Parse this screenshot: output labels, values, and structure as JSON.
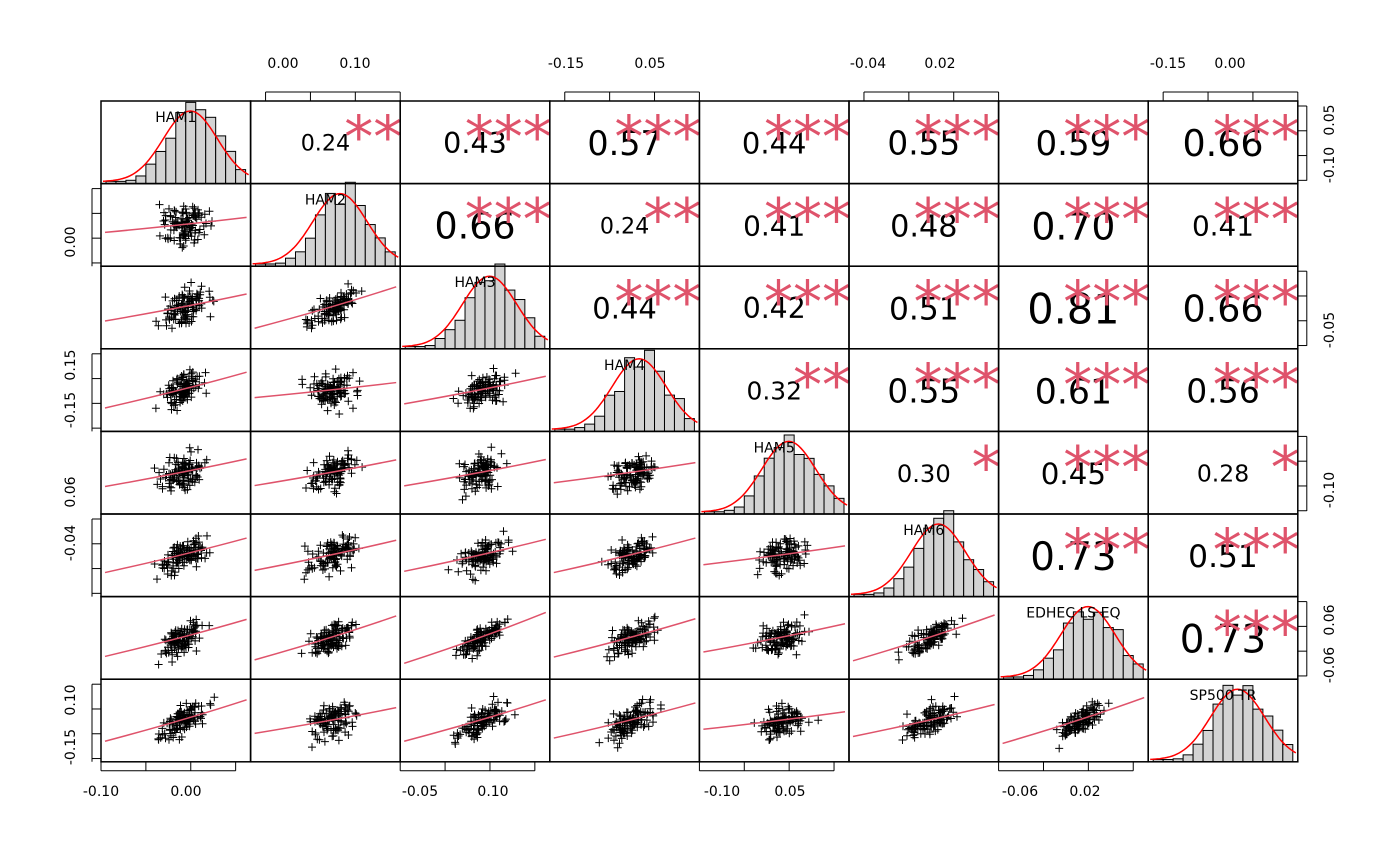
{
  "chart_data": {
    "type": "scatter",
    "title": "",
    "variables": [
      "HAM1",
      "HAM2",
      "HAM3",
      "HAM4",
      "HAM5",
      "HAM6",
      "EDHEC LS EQ",
      "SP500 TR"
    ],
    "correlations": [
      [
        null,
        0.24,
        0.43,
        0.57,
        0.44,
        0.55,
        0.59,
        0.66
      ],
      [
        null,
        null,
        0.66,
        0.24,
        0.41,
        0.48,
        0.7,
        0.41
      ],
      [
        null,
        null,
        null,
        0.44,
        0.42,
        0.51,
        0.81,
        0.66
      ],
      [
        null,
        null,
        null,
        null,
        0.32,
        0.55,
        0.61,
        0.56
      ],
      [
        null,
        null,
        null,
        null,
        null,
        0.3,
        0.45,
        0.28
      ],
      [
        null,
        null,
        null,
        null,
        null,
        null,
        0.73,
        0.51
      ],
      [
        null,
        null,
        null,
        null,
        null,
        null,
        null,
        0.73
      ]
    ],
    "correlation_labels": [
      [
        null,
        "0.24",
        "0.43",
        "0.57",
        "0.44",
        "0.55",
        "0.59",
        "0.66"
      ],
      [
        null,
        null,
        "0.66",
        "0.24",
        "0.41",
        "0.48",
        "0.70",
        "0.41"
      ],
      [
        null,
        null,
        null,
        "0.44",
        "0.42",
        "0.51",
        "0.81",
        "0.66"
      ],
      [
        null,
        null,
        null,
        null,
        "0.32",
        "0.55",
        "0.61",
        "0.56"
      ],
      [
        null,
        null,
        null,
        null,
        null,
        "0.30",
        "0.45",
        "0.28"
      ],
      [
        null,
        null,
        null,
        null,
        null,
        null,
        "0.73",
        "0.51"
      ],
      [
        null,
        null,
        null,
        null,
        null,
        null,
        null,
        "0.73"
      ]
    ],
    "significance": [
      [
        null,
        "**",
        "***",
        "***",
        "***",
        "***",
        "***",
        "***"
      ],
      [
        null,
        null,
        "***",
        "**",
        "***",
        "***",
        "***",
        "***"
      ],
      [
        null,
        null,
        null,
        "***",
        "***",
        "***",
        "***",
        "***"
      ],
      [
        null,
        null,
        null,
        null,
        "**",
        "***",
        "***",
        "***"
      ],
      [
        null,
        null,
        null,
        null,
        null,
        "*",
        "***",
        "*"
      ],
      [
        null,
        null,
        null,
        null,
        null,
        null,
        "***",
        "***"
      ],
      [
        null,
        null,
        null,
        null,
        null,
        null,
        null,
        "***"
      ]
    ],
    "axes": {
      "bottom": [
        [
          "-0.10",
          "0.00"
        ],
        null,
        [
          "-0.05",
          "0.10"
        ],
        null,
        [
          "-0.10",
          "0.05"
        ],
        null,
        [
          "-0.06",
          "0.02"
        ],
        null
      ],
      "top": [
        null,
        [
          "0.00",
          "0.10"
        ],
        null,
        [
          "-0.15",
          "0.05"
        ],
        null,
        [
          "-0.04",
          "0.02"
        ],
        null,
        [
          "-0.15",
          "0.00"
        ]
      ],
      "left": [
        null,
        [
          "0.00"
        ],
        null,
        [
          "0.15",
          "-0.15"
        ],
        null,
        [
          "0.06",
          "-0.04"
        ],
        null,
        [
          "0.10",
          "-0.15"
        ]
      ],
      "right": [
        [
          "0.05",
          "-0.10"
        ],
        null,
        [
          "-0.05"
        ],
        null,
        [
          "-0.10"
        ],
        null,
        [
          "0.06",
          "-0.06"
        ],
        null
      ]
    },
    "colors": {
      "stars": "#DF536B",
      "smooth": "#DF536B",
      "density": "#FF0000",
      "hist_fill": "#D3D3D3"
    }
  }
}
